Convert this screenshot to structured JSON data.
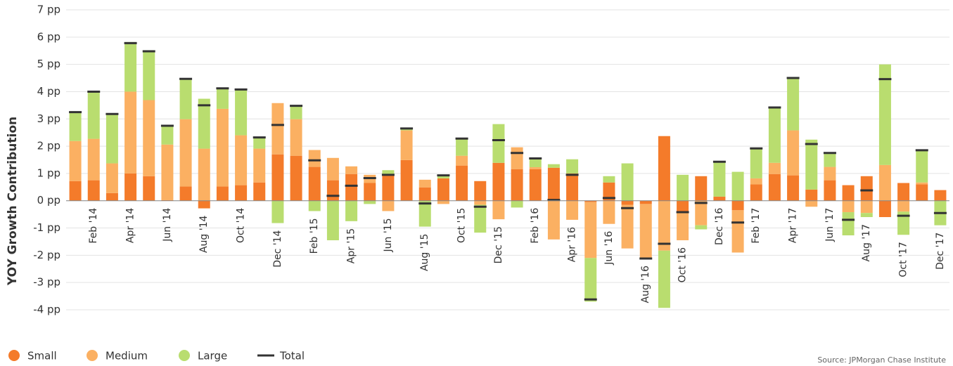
{
  "chart_data": {
    "type": "bar",
    "stacked": true,
    "y_label": "YOY Growth Contribution",
    "source": "Source:  JPMorgan Chase Institute",
    "categories": [
      null,
      "Feb '14",
      null,
      "Apr '14",
      null,
      "Jun '14",
      null,
      "Aug '14",
      null,
      "Oct '14",
      null,
      "Dec '14",
      null,
      "Feb '15",
      null,
      "Apr '15",
      null,
      "Jun '15",
      null,
      "Aug '15",
      null,
      "Oct '15",
      null,
      "Dec '15",
      null,
      "Feb '16",
      null,
      "Apr '16",
      null,
      "Jun '16",
      null,
      "Aug '16",
      null,
      "Oct '16",
      null,
      "Dec '16",
      null,
      "Feb '17",
      null,
      "Apr '17",
      null,
      "Jun '17",
      null,
      "Aug '17",
      null,
      "Oct '17",
      null,
      "Dec '17"
    ],
    "series": [
      {
        "name": "Small",
        "color": "#f47b2a",
        "mark": "bar",
        "values": [
          0.72,
          0.75,
          0.28,
          1.0,
          0.9,
          0.02,
          0.52,
          -0.28,
          0.52,
          0.57,
          0.67,
          1.7,
          1.65,
          1.24,
          0.75,
          0.98,
          0.65,
          0.93,
          1.49,
          0.49,
          0.82,
          1.29,
          0.72,
          1.39,
          1.16,
          1.16,
          1.21,
          1.0,
          -0.05,
          0.67,
          -0.15,
          -0.12,
          2.37,
          -0.4,
          0.9,
          0.15,
          -0.35,
          0.6,
          0.98,
          0.93,
          0.41,
          0.75,
          0.57,
          0.9,
          -0.6,
          0.65,
          0.6,
          0.39
        ]
      },
      {
        "name": "Medium",
        "color": "#fbb062",
        "mark": "bar",
        "values": [
          1.47,
          1.52,
          1.09,
          3.0,
          2.79,
          2.04,
          2.47,
          1.91,
          2.85,
          1.83,
          1.24,
          1.88,
          1.34,
          0.62,
          0.82,
          0.28,
          0.3,
          -0.38,
          1.09,
          0.28,
          -0.12,
          0.36,
          -0.15,
          -0.68,
          0.8,
          0.07,
          -1.42,
          -0.7,
          -2.05,
          -0.85,
          -1.6,
          -2.0,
          -1.83,
          -1.05,
          -0.9,
          0,
          -1.55,
          0.22,
          0.41,
          1.65,
          -0.22,
          0.49,
          -0.42,
          -0.45,
          1.31,
          -0.4,
          0.07,
          0
        ]
      },
      {
        "name": "Large",
        "color": "#b9dd6f",
        "mark": "bar",
        "values": [
          1.06,
          1.75,
          1.83,
          1.82,
          1.83,
          0.67,
          1.49,
          1.83,
          0.78,
          1.7,
          0.41,
          -0.82,
          0.46,
          -0.38,
          -1.45,
          -0.75,
          -0.12,
          0.19,
          0.1,
          -0.95,
          0.13,
          0.64,
          -1.02,
          1.42,
          -0.25,
          0.33,
          0.13,
          0.52,
          -1.6,
          0.23,
          1.37,
          0,
          -2.1,
          0.95,
          -0.15,
          1.29,
          1.06,
          1.11,
          2.06,
          1.96,
          1.83,
          0.51,
          -0.85,
          -0.15,
          3.69,
          -0.85,
          1.19,
          -0.9
        ]
      },
      {
        "name": "Total",
        "color": "#333333",
        "mark": "dash",
        "values": [
          3.25,
          4.0,
          3.18,
          5.78,
          5.48,
          2.75,
          4.47,
          3.5,
          4.12,
          4.08,
          2.32,
          2.78,
          3.48,
          1.48,
          0.18,
          0.55,
          0.83,
          0.95,
          2.65,
          -0.1,
          0.93,
          2.28,
          -0.22,
          2.22,
          1.75,
          1.55,
          0.03,
          0.95,
          -3.62,
          0.1,
          -0.27,
          -2.12,
          -1.58,
          -0.42,
          -0.08,
          1.43,
          -0.8,
          1.92,
          3.42,
          4.5,
          2.08,
          1.75,
          -0.7,
          0.38,
          4.46,
          -0.55,
          1.85,
          -0.45
        ]
      }
    ],
    "ylim": [
      -4,
      7
    ],
    "yticks": [
      {
        "value": -4,
        "label": "-4 pp"
      },
      {
        "value": -3,
        "label": "-3 pp"
      },
      {
        "value": -2,
        "label": "-2 pp"
      },
      {
        "value": -1,
        "label": "-1 pp"
      },
      {
        "value": 0,
        "label": "0 pp"
      },
      {
        "value": 1,
        "label": "1 pp"
      },
      {
        "value": 2,
        "label": "2 pp"
      },
      {
        "value": 3,
        "label": "3 pp"
      },
      {
        "value": 4,
        "label": "4 pp"
      },
      {
        "value": 5,
        "label": "5 pp"
      },
      {
        "value": 6,
        "label": "6 pp"
      },
      {
        "value": 7,
        "label": "7 pp"
      }
    ],
    "grid": true
  }
}
